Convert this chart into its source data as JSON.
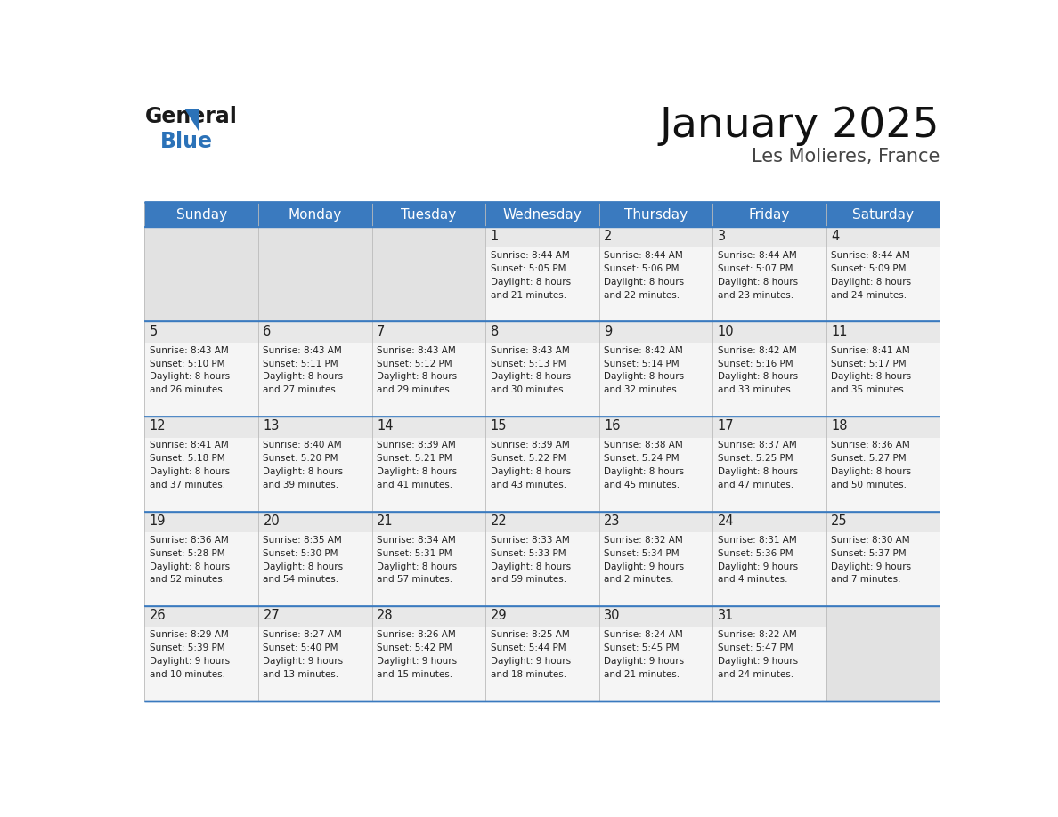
{
  "title": "January 2025",
  "subtitle": "Les Molieres, France",
  "header_bg_color": "#3a7abf",
  "header_text_color": "#ffffff",
  "day_names": [
    "Sunday",
    "Monday",
    "Tuesday",
    "Wednesday",
    "Thursday",
    "Friday",
    "Saturday"
  ],
  "cell_bg_color": "#ebebeb",
  "cell_content_bg": "#f7f7f7",
  "empty_cell_bg": "#e8e8e8",
  "border_color": "#3a7abf",
  "grid_color": "#bbbbbb",
  "text_color": "#222222",
  "title_color": "#111111",
  "subtitle_color": "#444444",
  "logo_text_color": "#111111",
  "logo_blue_color": "#2b72b8",
  "logo_triangle_color": "#2b72b8",
  "weeks": [
    [
      {
        "day": null,
        "info": null
      },
      {
        "day": null,
        "info": null
      },
      {
        "day": null,
        "info": null
      },
      {
        "day": 1,
        "info": "Sunrise: 8:44 AM\nSunset: 5:05 PM\nDaylight: 8 hours\nand 21 minutes."
      },
      {
        "day": 2,
        "info": "Sunrise: 8:44 AM\nSunset: 5:06 PM\nDaylight: 8 hours\nand 22 minutes."
      },
      {
        "day": 3,
        "info": "Sunrise: 8:44 AM\nSunset: 5:07 PM\nDaylight: 8 hours\nand 23 minutes."
      },
      {
        "day": 4,
        "info": "Sunrise: 8:44 AM\nSunset: 5:09 PM\nDaylight: 8 hours\nand 24 minutes."
      }
    ],
    [
      {
        "day": 5,
        "info": "Sunrise: 8:43 AM\nSunset: 5:10 PM\nDaylight: 8 hours\nand 26 minutes."
      },
      {
        "day": 6,
        "info": "Sunrise: 8:43 AM\nSunset: 5:11 PM\nDaylight: 8 hours\nand 27 minutes."
      },
      {
        "day": 7,
        "info": "Sunrise: 8:43 AM\nSunset: 5:12 PM\nDaylight: 8 hours\nand 29 minutes."
      },
      {
        "day": 8,
        "info": "Sunrise: 8:43 AM\nSunset: 5:13 PM\nDaylight: 8 hours\nand 30 minutes."
      },
      {
        "day": 9,
        "info": "Sunrise: 8:42 AM\nSunset: 5:14 PM\nDaylight: 8 hours\nand 32 minutes."
      },
      {
        "day": 10,
        "info": "Sunrise: 8:42 AM\nSunset: 5:16 PM\nDaylight: 8 hours\nand 33 minutes."
      },
      {
        "day": 11,
        "info": "Sunrise: 8:41 AM\nSunset: 5:17 PM\nDaylight: 8 hours\nand 35 minutes."
      }
    ],
    [
      {
        "day": 12,
        "info": "Sunrise: 8:41 AM\nSunset: 5:18 PM\nDaylight: 8 hours\nand 37 minutes."
      },
      {
        "day": 13,
        "info": "Sunrise: 8:40 AM\nSunset: 5:20 PM\nDaylight: 8 hours\nand 39 minutes."
      },
      {
        "day": 14,
        "info": "Sunrise: 8:39 AM\nSunset: 5:21 PM\nDaylight: 8 hours\nand 41 minutes."
      },
      {
        "day": 15,
        "info": "Sunrise: 8:39 AM\nSunset: 5:22 PM\nDaylight: 8 hours\nand 43 minutes."
      },
      {
        "day": 16,
        "info": "Sunrise: 8:38 AM\nSunset: 5:24 PM\nDaylight: 8 hours\nand 45 minutes."
      },
      {
        "day": 17,
        "info": "Sunrise: 8:37 AM\nSunset: 5:25 PM\nDaylight: 8 hours\nand 47 minutes."
      },
      {
        "day": 18,
        "info": "Sunrise: 8:36 AM\nSunset: 5:27 PM\nDaylight: 8 hours\nand 50 minutes."
      }
    ],
    [
      {
        "day": 19,
        "info": "Sunrise: 8:36 AM\nSunset: 5:28 PM\nDaylight: 8 hours\nand 52 minutes."
      },
      {
        "day": 20,
        "info": "Sunrise: 8:35 AM\nSunset: 5:30 PM\nDaylight: 8 hours\nand 54 minutes."
      },
      {
        "day": 21,
        "info": "Sunrise: 8:34 AM\nSunset: 5:31 PM\nDaylight: 8 hours\nand 57 minutes."
      },
      {
        "day": 22,
        "info": "Sunrise: 8:33 AM\nSunset: 5:33 PM\nDaylight: 8 hours\nand 59 minutes."
      },
      {
        "day": 23,
        "info": "Sunrise: 8:32 AM\nSunset: 5:34 PM\nDaylight: 9 hours\nand 2 minutes."
      },
      {
        "day": 24,
        "info": "Sunrise: 8:31 AM\nSunset: 5:36 PM\nDaylight: 9 hours\nand 4 minutes."
      },
      {
        "day": 25,
        "info": "Sunrise: 8:30 AM\nSunset: 5:37 PM\nDaylight: 9 hours\nand 7 minutes."
      }
    ],
    [
      {
        "day": 26,
        "info": "Sunrise: 8:29 AM\nSunset: 5:39 PM\nDaylight: 9 hours\nand 10 minutes."
      },
      {
        "day": 27,
        "info": "Sunrise: 8:27 AM\nSunset: 5:40 PM\nDaylight: 9 hours\nand 13 minutes."
      },
      {
        "day": 28,
        "info": "Sunrise: 8:26 AM\nSunset: 5:42 PM\nDaylight: 9 hours\nand 15 minutes."
      },
      {
        "day": 29,
        "info": "Sunrise: 8:25 AM\nSunset: 5:44 PM\nDaylight: 9 hours\nand 18 minutes."
      },
      {
        "day": 30,
        "info": "Sunrise: 8:24 AM\nSunset: 5:45 PM\nDaylight: 9 hours\nand 21 minutes."
      },
      {
        "day": 31,
        "info": "Sunrise: 8:22 AM\nSunset: 5:47 PM\nDaylight: 9 hours\nand 24 minutes."
      },
      {
        "day": null,
        "info": null
      }
    ]
  ]
}
